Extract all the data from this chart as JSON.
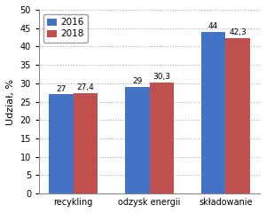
{
  "categories": [
    "recykling",
    "odzysk energii",
    "składowanie"
  ],
  "values_2016": [
    27,
    29,
    44
  ],
  "values_2018": [
    27.4,
    30.3,
    42.3
  ],
  "labels_2016": [
    "27",
    "29",
    "44"
  ],
  "labels_2018": [
    "27,4",
    "30,3",
    "42,3"
  ],
  "color_2016": "#4472C4",
  "color_2018": "#C0504D",
  "ylabel": "Udział, %",
  "ylim": [
    0,
    50
  ],
  "yticks": [
    0,
    5,
    10,
    15,
    20,
    25,
    30,
    35,
    40,
    45,
    50
  ],
  "legend_labels": [
    "2016",
    "2018"
  ],
  "bar_width": 0.32,
  "background_color": "#FFFFFF",
  "grid_color": "#AAAAAA",
  "label_fontsize": 6.5,
  "tick_fontsize": 7,
  "ylabel_fontsize": 8,
  "legend_fontsize": 7.5
}
